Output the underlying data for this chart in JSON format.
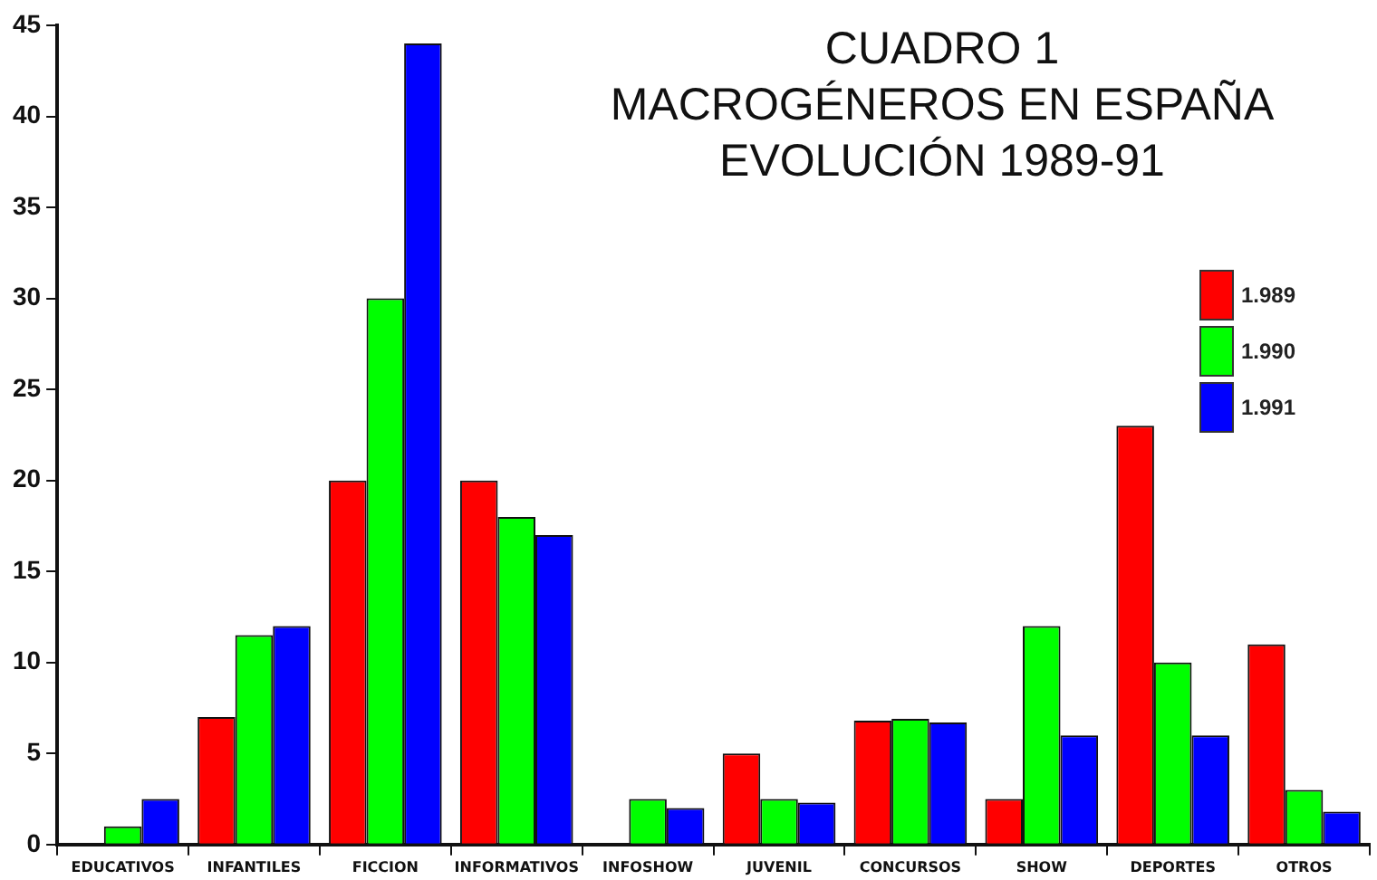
{
  "chart_data": {
    "type": "bar",
    "title": "CUADRO 1\nMACROGÉNEROS EN ESPAÑA\nEVOLUCIÓN 1989-91",
    "categories": [
      "EDUCATIVOS",
      "INFANTILES",
      "FICCION",
      "INFORMATIVOS",
      "INFOSHOW",
      "JUVENIL",
      "CONCURSOS",
      "SHOW",
      "DEPORTES",
      "OTROS"
    ],
    "series": [
      {
        "name": "1.989",
        "color": "#ff0000",
        "values": [
          0,
          7,
          20,
          20,
          0,
          5,
          6.8,
          2.5,
          23,
          11
        ]
      },
      {
        "name": "1.990",
        "color": "#00ff00",
        "values": [
          1,
          11.5,
          30,
          18,
          2.5,
          2.5,
          6.9,
          12,
          10,
          3
        ]
      },
      {
        "name": "1.991",
        "color": "#0000ff",
        "values": [
          2.5,
          12,
          44,
          17,
          2,
          2.3,
          6.7,
          6,
          6,
          1.8
        ]
      }
    ],
    "ylim": [
      0,
      45
    ],
    "yticks": [
      0,
      5,
      10,
      15,
      20,
      25,
      30,
      35,
      40,
      45
    ],
    "grid": false,
    "legend": "top right"
  }
}
